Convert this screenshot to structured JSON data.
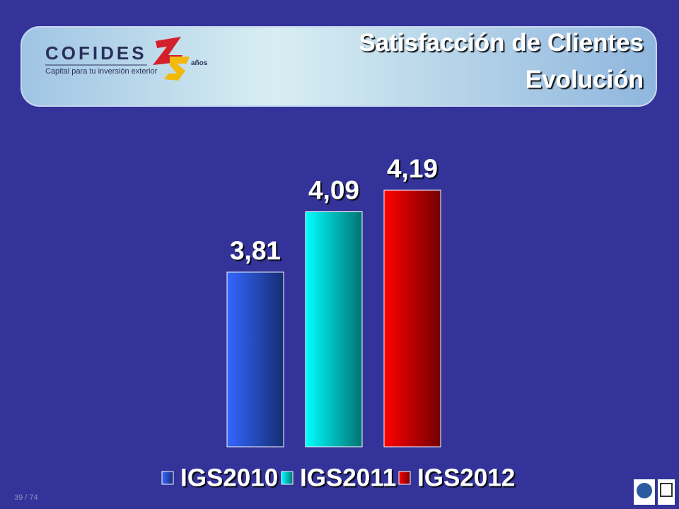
{
  "header": {
    "logo": "COFIDES",
    "tagline": "Capital para tu inversión exterior",
    "anniversary": "años",
    "title_line1": "Satisfacción de Clientes",
    "title_line2": "Evolución"
  },
  "chart_data": {
    "type": "bar",
    "categories": [
      "IGS2010",
      "IGS2011",
      "IGS2012"
    ],
    "values": [
      3.81,
      4.09,
      4.19
    ],
    "value_labels": [
      "3,81",
      "4,09",
      "4,19"
    ],
    "colors": [
      "#3366ff",
      "#00ffff",
      "#ff0000"
    ],
    "ylim": [
      3,
      4.4
    ],
    "legend": "bottom"
  },
  "footer": {
    "page": "39 / 74"
  }
}
